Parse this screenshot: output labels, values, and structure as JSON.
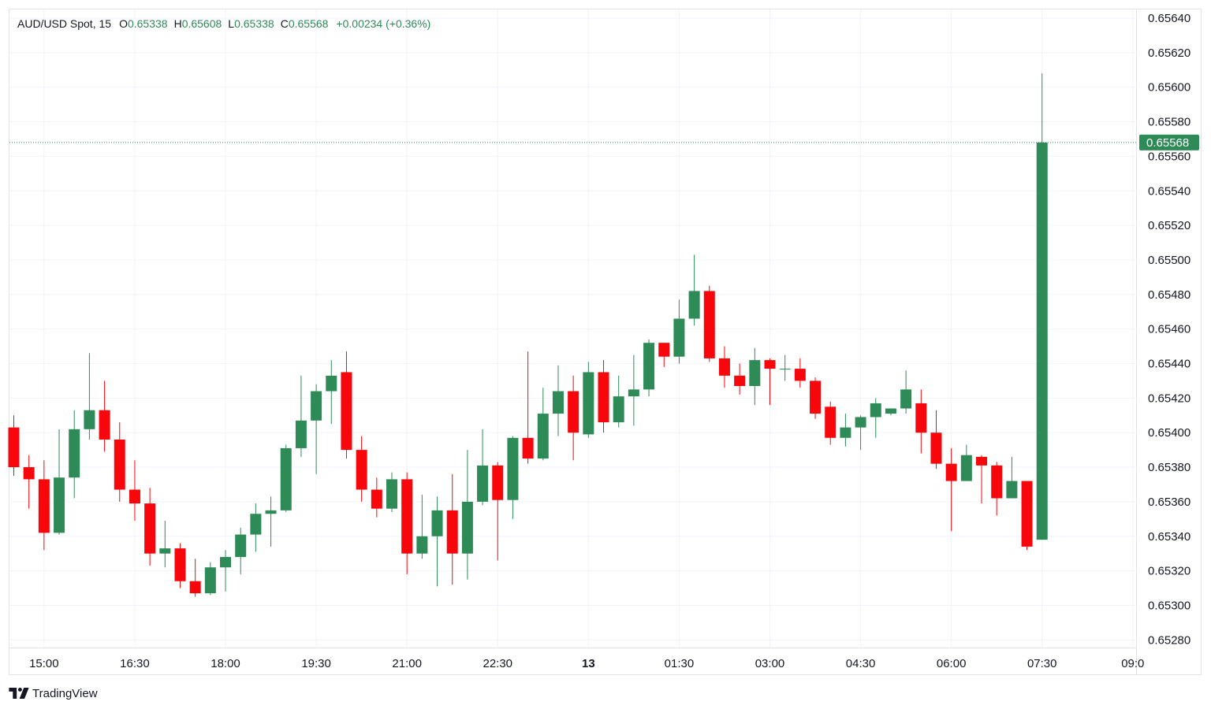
{
  "legend": {
    "symbol": "AUD/USD Spot, 15",
    "open_label": "O",
    "open_value": "0.65338",
    "high_label": "H",
    "high_value": "0.65608",
    "low_label": "L",
    "low_value": "0.65338",
    "close_label": "C",
    "close_value": "0.65568",
    "change": "+0.00234 (+0.36%)"
  },
  "footer": {
    "brand": "TradingView",
    "logo_icon": "tradingview-logo-icon"
  },
  "colors": {
    "up": "#2e8b57",
    "down": "#f7070b",
    "grid": "#f0f3fa",
    "axis_text": "#131722",
    "price_line": "#2e8b57",
    "legend_value": "#2e8b57"
  },
  "chart_data": {
    "type": "candlestick",
    "instrument": "AUD/USD Spot",
    "interval": "15",
    "last_price": 0.65568,
    "last_price_label": "0.65568",
    "y_axis": {
      "ylim": [
        0.65272,
        0.65645
      ],
      "ticks": [
        "0.65280",
        "0.65300",
        "0.65320",
        "0.65340",
        "0.65360",
        "0.65380",
        "0.65400",
        "0.65420",
        "0.65440",
        "0.65460",
        "0.65480",
        "0.65500",
        "0.65520",
        "0.65540",
        "0.65560",
        "0.65580",
        "0.65600",
        "0.65620",
        "0.65640"
      ]
    },
    "x_axis": {
      "ticks": [
        {
          "label": "15:00",
          "bar": 2,
          "bold": false
        },
        {
          "label": "16:30",
          "bar": 8,
          "bold": false
        },
        {
          "label": "18:00",
          "bar": 14,
          "bold": false
        },
        {
          "label": "19:30",
          "bar": 20,
          "bold": false
        },
        {
          "label": "21:00",
          "bar": 26,
          "bold": false
        },
        {
          "label": "22:30",
          "bar": 32,
          "bold": false
        },
        {
          "label": "13",
          "bar": 38,
          "bold": true
        },
        {
          "label": "01:30",
          "bar": 44,
          "bold": false
        },
        {
          "label": "03:00",
          "bar": 50,
          "bold": false
        },
        {
          "label": "04:30",
          "bar": 56,
          "bold": false
        },
        {
          "label": "06:00",
          "bar": 62,
          "bold": false
        },
        {
          "label": "07:30",
          "bar": 68,
          "bold": false
        },
        {
          "label": "09:0",
          "bar": 74,
          "bold": false
        }
      ]
    },
    "grid": true,
    "candles": [
      {
        "o": 0.65403,
        "h": 0.6541,
        "l": 0.65375,
        "c": 0.6538
      },
      {
        "o": 0.6538,
        "h": 0.65387,
        "l": 0.65356,
        "c": 0.65373
      },
      {
        "o": 0.65373,
        "h": 0.65384,
        "l": 0.65332,
        "c": 0.65342
      },
      {
        "o": 0.65342,
        "h": 0.65402,
        "l": 0.65341,
        "c": 0.65374
      },
      {
        "o": 0.65374,
        "h": 0.65413,
        "l": 0.65362,
        "c": 0.65402
      },
      {
        "o": 0.65402,
        "h": 0.65446,
        "l": 0.65396,
        "c": 0.65413
      },
      {
        "o": 0.65413,
        "h": 0.6543,
        "l": 0.65389,
        "c": 0.65396
      },
      {
        "o": 0.65396,
        "h": 0.65406,
        "l": 0.6536,
        "c": 0.65367
      },
      {
        "o": 0.65367,
        "h": 0.65384,
        "l": 0.65349,
        "c": 0.65359
      },
      {
        "o": 0.65359,
        "h": 0.65368,
        "l": 0.65323,
        "c": 0.6533
      },
      {
        "o": 0.6533,
        "h": 0.65349,
        "l": 0.65322,
        "c": 0.65333
      },
      {
        "o": 0.65333,
        "h": 0.65336,
        "l": 0.6531,
        "c": 0.65314
      },
      {
        "o": 0.65314,
        "h": 0.65327,
        "l": 0.65305,
        "c": 0.65307
      },
      {
        "o": 0.65307,
        "h": 0.65325,
        "l": 0.65306,
        "c": 0.65322
      },
      {
        "o": 0.65322,
        "h": 0.65332,
        "l": 0.65308,
        "c": 0.65328
      },
      {
        "o": 0.65328,
        "h": 0.65345,
        "l": 0.65318,
        "c": 0.65341
      },
      {
        "o": 0.65341,
        "h": 0.65359,
        "l": 0.65331,
        "c": 0.65353
      },
      {
        "o": 0.65353,
        "h": 0.65363,
        "l": 0.65334,
        "c": 0.65355
      },
      {
        "o": 0.65355,
        "h": 0.65393,
        "l": 0.65354,
        "c": 0.65391
      },
      {
        "o": 0.65391,
        "h": 0.65433,
        "l": 0.65386,
        "c": 0.65407
      },
      {
        "o": 0.65407,
        "h": 0.65428,
        "l": 0.65376,
        "c": 0.65424
      },
      {
        "o": 0.65424,
        "h": 0.65442,
        "l": 0.65405,
        "c": 0.65433
      },
      {
        "o": 0.65435,
        "h": 0.65447,
        "l": 0.65385,
        "c": 0.6539
      },
      {
        "o": 0.6539,
        "h": 0.65398,
        "l": 0.6536,
        "c": 0.65367
      },
      {
        "o": 0.65367,
        "h": 0.65374,
        "l": 0.65351,
        "c": 0.65356
      },
      {
        "o": 0.65356,
        "h": 0.65377,
        "l": 0.65354,
        "c": 0.65373
      },
      {
        "o": 0.65373,
        "h": 0.65377,
        "l": 0.65318,
        "c": 0.6533
      },
      {
        "o": 0.6533,
        "h": 0.65364,
        "l": 0.65327,
        "c": 0.6534
      },
      {
        "o": 0.6534,
        "h": 0.65363,
        "l": 0.65311,
        "c": 0.65355
      },
      {
        "o": 0.65355,
        "h": 0.65376,
        "l": 0.65312,
        "c": 0.6533
      },
      {
        "o": 0.6533,
        "h": 0.6539,
        "l": 0.65315,
        "c": 0.6536
      },
      {
        "o": 0.6536,
        "h": 0.65402,
        "l": 0.65358,
        "c": 0.65381
      },
      {
        "o": 0.65381,
        "h": 0.65383,
        "l": 0.65326,
        "c": 0.65361
      },
      {
        "o": 0.65361,
        "h": 0.65398,
        "l": 0.6535,
        "c": 0.65397
      },
      {
        "o": 0.65397,
        "h": 0.65447,
        "l": 0.65382,
        "c": 0.65385
      },
      {
        "o": 0.65385,
        "h": 0.65426,
        "l": 0.65384,
        "c": 0.65411
      },
      {
        "o": 0.65411,
        "h": 0.65439,
        "l": 0.65398,
        "c": 0.65424
      },
      {
        "o": 0.65424,
        "h": 0.65433,
        "l": 0.65384,
        "c": 0.654
      },
      {
        "o": 0.65399,
        "h": 0.65441,
        "l": 0.65397,
        "c": 0.65435
      },
      {
        "o": 0.65435,
        "h": 0.65442,
        "l": 0.654,
        "c": 0.65406
      },
      {
        "o": 0.65406,
        "h": 0.65433,
        "l": 0.65403,
        "c": 0.65421
      },
      {
        "o": 0.65421,
        "h": 0.65445,
        "l": 0.65404,
        "c": 0.65425
      },
      {
        "o": 0.65425,
        "h": 0.65454,
        "l": 0.65421,
        "c": 0.65452
      },
      {
        "o": 0.65452,
        "h": 0.65452,
        "l": 0.65438,
        "c": 0.65444
      },
      {
        "o": 0.65444,
        "h": 0.65477,
        "l": 0.6544,
        "c": 0.65466
      },
      {
        "o": 0.65466,
        "h": 0.65503,
        "l": 0.65462,
        "c": 0.65482
      },
      {
        "o": 0.65482,
        "h": 0.65485,
        "l": 0.65441,
        "c": 0.65443
      },
      {
        "o": 0.65443,
        "h": 0.6545,
        "l": 0.65426,
        "c": 0.65433
      },
      {
        "o": 0.65433,
        "h": 0.6544,
        "l": 0.65422,
        "c": 0.65427
      },
      {
        "o": 0.65427,
        "h": 0.65449,
        "l": 0.65416,
        "c": 0.65442
      },
      {
        "o": 0.65442,
        "h": 0.65443,
        "l": 0.65416,
        "c": 0.65437
      },
      {
        "o": 0.65437,
        "h": 0.65445,
        "l": 0.6543,
        "c": 0.65437
      },
      {
        "o": 0.65437,
        "h": 0.65443,
        "l": 0.65426,
        "c": 0.6543
      },
      {
        "o": 0.6543,
        "h": 0.65432,
        "l": 0.65408,
        "c": 0.65411
      },
      {
        "o": 0.65415,
        "h": 0.65418,
        "l": 0.65393,
        "c": 0.65397
      },
      {
        "o": 0.65397,
        "h": 0.65411,
        "l": 0.65392,
        "c": 0.65403
      },
      {
        "o": 0.65403,
        "h": 0.6541,
        "l": 0.6539,
        "c": 0.65409
      },
      {
        "o": 0.65409,
        "h": 0.6542,
        "l": 0.65397,
        "c": 0.65417
      },
      {
        "o": 0.65411,
        "h": 0.65414,
        "l": 0.6541,
        "c": 0.65414
      },
      {
        "o": 0.65414,
        "h": 0.65436,
        "l": 0.65411,
        "c": 0.65425
      },
      {
        "o": 0.65417,
        "h": 0.65425,
        "l": 0.65388,
        "c": 0.654
      },
      {
        "o": 0.654,
        "h": 0.65413,
        "l": 0.65379,
        "c": 0.65382
      },
      {
        "o": 0.65382,
        "h": 0.65391,
        "l": 0.65343,
        "c": 0.65372
      },
      {
        "o": 0.65372,
        "h": 0.65393,
        "l": 0.65372,
        "c": 0.65387
      },
      {
        "o": 0.65386,
        "h": 0.65387,
        "l": 0.65359,
        "c": 0.65381
      },
      {
        "o": 0.65381,
        "h": 0.65383,
        "l": 0.65352,
        "c": 0.65362
      },
      {
        "o": 0.65362,
        "h": 0.65386,
        "l": 0.65362,
        "c": 0.65372
      },
      {
        "o": 0.65372,
        "h": 0.65372,
        "l": 0.65332,
        "c": 0.65334
      },
      {
        "o": 0.65338,
        "h": 0.65608,
        "l": 0.65338,
        "c": 0.65568
      }
    ]
  }
}
